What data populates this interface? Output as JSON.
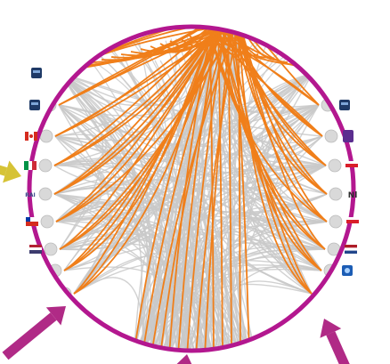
{
  "figure": {
    "background": "#ffffff",
    "lens_border_color": "#b3178f",
    "edge_color_highlight": "#f07f1a",
    "edge_color_background": "#c9c9c9",
    "node_color": "#d9d9d9",
    "arrow_color": "#b02a86",
    "arrow_yellow_color": "#d6c336"
  },
  "left_nodes": [
    {
      "icon": "tv-logo-dark-icon"
    },
    {
      "icon": "tv-logo-dark-icon"
    },
    {
      "icon": "flag-canada-icon"
    },
    {
      "icon": "flag-italy-icon"
    },
    {
      "icon": "rai-logo-icon",
      "label": "RAI"
    },
    {
      "icon": "flag-chile-icon"
    },
    {
      "icon": "flag-stripes-icon"
    },
    {
      "icon": "none"
    },
    {
      "icon": "none"
    }
  ],
  "right_nodes": [
    {
      "icon": "none"
    },
    {
      "icon": "tv-logo-dark-icon"
    },
    {
      "icon": "logo-purple-icon"
    },
    {
      "icon": "flag-red-white-icon"
    },
    {
      "icon": "logo-nl-icon",
      "label": "Nl"
    },
    {
      "icon": "flag-red-white-icon"
    },
    {
      "icon": "flag-netherlands-icon"
    },
    {
      "icon": "logo-blue-icon"
    },
    {
      "icon": "none"
    }
  ]
}
